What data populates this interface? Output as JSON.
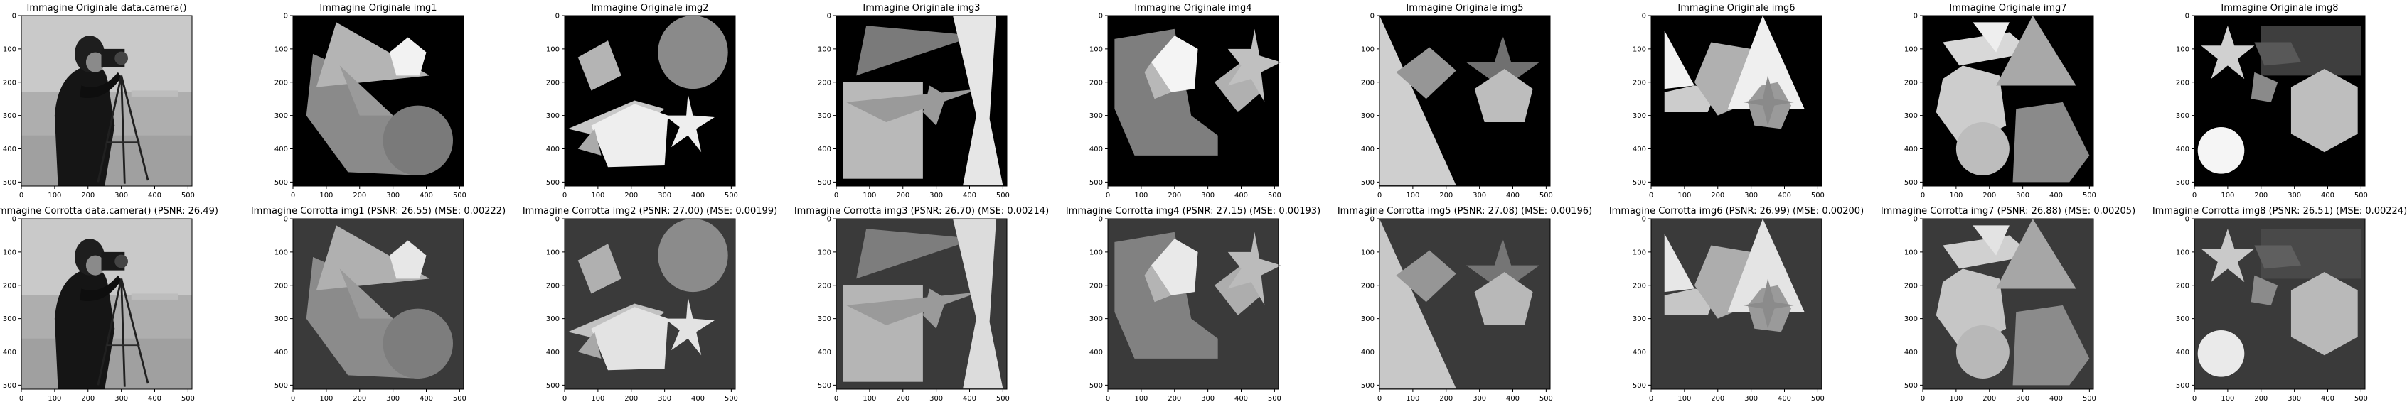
{
  "figure": {
    "rows": [
      {
        "panels": [
          {
            "title": "Immagine Originale data.camera()",
            "image": "cameraman"
          },
          {
            "title": "Immagine Originale img1",
            "image": "img1"
          },
          {
            "title": "Immagine Originale img2",
            "image": "img2"
          },
          {
            "title": "Immagine Originale img3",
            "image": "img3"
          },
          {
            "title": "Immagine Originale img4",
            "image": "img4"
          },
          {
            "title": "Immagine Originale img5",
            "image": "img5"
          },
          {
            "title": "Immagine Originale img6",
            "image": "img6"
          },
          {
            "title": "Immagine Originale img7",
            "image": "img7"
          },
          {
            "title": "Immagine Originale img8",
            "image": "img8"
          }
        ]
      },
      {
        "panels": [
          {
            "title": "Immagine Corrotta data.camera() (PSNR: 26.49)",
            "image": "cameraman"
          },
          {
            "title": "Immagine Corrotta img1 (PSNR: 26.55) (MSE: 0.00222)",
            "image": "img1"
          },
          {
            "title": "Immagine Corrotta img2 (PSNR: 27.00) (MSE: 0.00199)",
            "image": "img2"
          },
          {
            "title": "Immagine Corrotta img3 (PSNR: 26.70) (MSE: 0.00214)",
            "image": "img3"
          },
          {
            "title": "Immagine Corrotta img4 (PSNR: 27.15) (MSE: 0.00193)",
            "image": "img4"
          },
          {
            "title": "Immagine Corrotta img5 (PSNR: 27.08) (MSE: 0.00196)",
            "image": "img5"
          },
          {
            "title": "Immagine Corrotta img6 (PSNR: 26.99) (MSE: 0.00200)",
            "image": "img6"
          },
          {
            "title": "Immagine Corrotta img7 (PSNR: 26.88) (MSE: 0.00205)",
            "image": "img7"
          },
          {
            "title": "Immagine Corrotta img8 (PSNR: 26.51) (MSE: 0.00224)",
            "image": "img8"
          }
        ]
      }
    ],
    "x_ticks": [
      "0",
      "100",
      "200",
      "300",
      "400",
      "500"
    ],
    "y_ticks": [
      "0",
      "100",
      "200",
      "300",
      "400",
      "500"
    ],
    "colors": {
      "background": "#000000",
      "tick": "#000000",
      "noisy_tint": "#3a3a3a"
    }
  }
}
